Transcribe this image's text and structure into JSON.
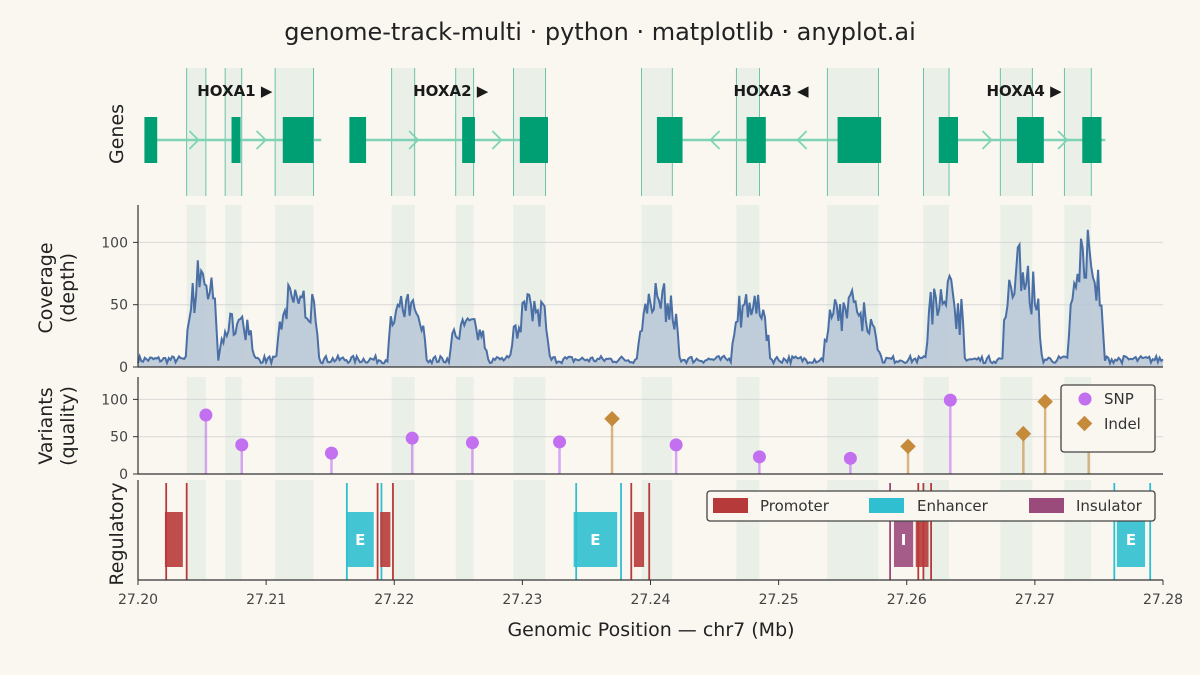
{
  "chart_data": {
    "type": "genome-track",
    "title": "genome-track-multi · python · matplotlib · anyplot.ai",
    "xlabel": "Genomic Position — chr7 (Mb)",
    "xlim": [
      27.2,
      27.28
    ],
    "xticks": [
      "27.20",
      "27.21",
      "27.22",
      "27.23",
      "27.24",
      "27.25",
      "27.26",
      "27.27",
      "27.28"
    ],
    "colors": {
      "exon": "#009e73",
      "intron": "#7fd3b5",
      "coverage_line": "#4a6fa5",
      "coverage_fill": "#b7c6d6",
      "snp": "#c26ff0",
      "indel": "#c58a3a",
      "promoter": "#b73a3a",
      "enhancer": "#2fbfd0",
      "insulator": "#9b4a7c",
      "exon_shade": "#e6efe6"
    },
    "genes_track": {
      "ylabel": "Genes",
      "genes": [
        {
          "name": "HOXA1",
          "strand": "▶",
          "start": 27.2005,
          "end": 27.2143,
          "exons": [
            [
              27.2005,
              27.2015
            ],
            [
              27.2073,
              27.208
            ],
            [
              27.2113,
              27.2137
            ]
          ]
        },
        {
          "name": "HOXA2",
          "strand": "▶",
          "start": 27.2165,
          "end": 27.232,
          "exons": [
            [
              27.2165,
              27.2178
            ],
            [
              27.2253,
              27.2263
            ],
            [
              27.2298,
              27.232
            ]
          ]
        },
        {
          "name": "HOXA3",
          "strand": "◀",
          "start": 27.2405,
          "end": 27.258,
          "exons": [
            [
              27.2405,
              27.2425
            ],
            [
              27.2475,
              27.249
            ],
            [
              27.2546,
              27.258
            ]
          ]
        },
        {
          "name": "HOXA4",
          "strand": "▶",
          "start": 27.2625,
          "end": 27.2755,
          "exons": [
            [
              27.2625,
              27.264
            ],
            [
              27.2686,
              27.2707
            ],
            [
              27.2737,
              27.2752
            ]
          ]
        }
      ]
    },
    "exon_regions": [
      [
        27.2038,
        27.2053
      ],
      [
        27.2068,
        27.2081
      ],
      [
        27.2107,
        27.2137
      ],
      [
        27.2198,
        27.2216
      ],
      [
        27.2248,
        27.2262
      ],
      [
        27.2293,
        27.2318
      ],
      [
        27.2393,
        27.2417
      ],
      [
        27.2467,
        27.2485
      ],
      [
        27.2538,
        27.2578
      ],
      [
        27.2613,
        27.2633
      ],
      [
        27.2673,
        27.2698
      ],
      [
        27.2723,
        27.2744
      ]
    ],
    "coverage_track": {
      "ylabel": [
        "Coverage",
        "(depth)"
      ],
      "ylim": [
        0,
        130
      ],
      "yticks": [
        0,
        50,
        100
      ],
      "peaks": [
        {
          "x": 27.205,
          "h": 85,
          "w": 0.0009
        },
        {
          "x": 27.2077,
          "h": 38,
          "w": 0.001
        },
        {
          "x": 27.2125,
          "h": 62,
          "w": 0.0012
        },
        {
          "x": 27.221,
          "h": 52,
          "w": 0.0011
        },
        {
          "x": 27.2258,
          "h": 35,
          "w": 0.0011
        },
        {
          "x": 27.2306,
          "h": 55,
          "w": 0.0011
        },
        {
          "x": 27.2406,
          "h": 62,
          "w": 0.0012
        },
        {
          "x": 27.2478,
          "h": 58,
          "w": 0.0011
        },
        {
          "x": 27.2557,
          "h": 55,
          "w": 0.0016
        },
        {
          "x": 27.263,
          "h": 73,
          "w": 0.0011
        },
        {
          "x": 27.269,
          "h": 92,
          "w": 0.0011
        },
        {
          "x": 27.274,
          "h": 105,
          "w": 0.001
        }
      ]
    },
    "variants_track": {
      "ylabel": [
        "Variants",
        "(quality)"
      ],
      "ylim": [
        0,
        130
      ],
      "yticks": [
        0,
        50,
        100
      ],
      "legend": [
        "SNP",
        "Indel"
      ],
      "snps": [
        {
          "x": 27.2053,
          "q": 79
        },
        {
          "x": 27.2081,
          "q": 39
        },
        {
          "x": 27.2151,
          "q": 28
        },
        {
          "x": 27.2214,
          "q": 48
        },
        {
          "x": 27.2261,
          "q": 42
        },
        {
          "x": 27.2329,
          "q": 43
        },
        {
          "x": 27.242,
          "q": 39
        },
        {
          "x": 27.2485,
          "q": 23
        },
        {
          "x": 27.2556,
          "q": 21
        },
        {
          "x": 27.2634,
          "q": 99
        }
      ],
      "indels": [
        {
          "x": 27.237,
          "q": 74
        },
        {
          "x": 27.2601,
          "q": 37
        },
        {
          "x": 27.2691,
          "q": 54
        },
        {
          "x": 27.2708,
          "q": 97
        },
        {
          "x": 27.2742,
          "q": 50
        }
      ]
    },
    "regulatory_track": {
      "ylabel": "Regulatory",
      "legend": [
        "Promoter",
        "Enhancer",
        "Insulator"
      ],
      "elements": [
        {
          "type": "promoter",
          "start": 27.2021,
          "end": 27.2035,
          "label": ""
        },
        {
          "type": "enhancer",
          "start": 27.2163,
          "end": 27.2184,
          "label": "E"
        },
        {
          "type": "promoter",
          "start": 27.2189,
          "end": 27.2197,
          "label": ""
        },
        {
          "type": "enhancer",
          "start": 27.234,
          "end": 27.2374,
          "label": "E"
        },
        {
          "type": "promoter",
          "start": 27.2387,
          "end": 27.2395,
          "label": ""
        },
        {
          "type": "insulator",
          "start": 27.259,
          "end": 27.2605,
          "label": "I"
        },
        {
          "type": "promoter",
          "start": 27.2607,
          "end": 27.2617,
          "label": ""
        },
        {
          "type": "enhancer",
          "start": 27.2764,
          "end": 27.2786,
          "label": "E"
        }
      ],
      "boundaries": [
        {
          "type": "promoter",
          "x": 27.2022
        },
        {
          "type": "promoter",
          "x": 27.2038
        },
        {
          "type": "enhancer",
          "x": 27.2163
        },
        {
          "type": "promoter",
          "x": 27.2187
        },
        {
          "type": "promoter",
          "x": 27.2199
        },
        {
          "type": "enhancer",
          "x": 27.219
        },
        {
          "type": "enhancer",
          "x": 27.2342
        },
        {
          "type": "enhancer",
          "x": 27.2377
        },
        {
          "type": "promoter",
          "x": 27.2385
        },
        {
          "type": "promoter",
          "x": 27.2399
        },
        {
          "type": "insulator",
          "x": 27.2587
        },
        {
          "type": "promoter",
          "x": 27.2609
        },
        {
          "type": "promoter",
          "x": 27.2613
        },
        {
          "type": "promoter",
          "x": 27.2619
        },
        {
          "type": "enhancer",
          "x": 27.2762
        },
        {
          "type": "enhancer",
          "x": 27.279
        }
      ]
    }
  }
}
